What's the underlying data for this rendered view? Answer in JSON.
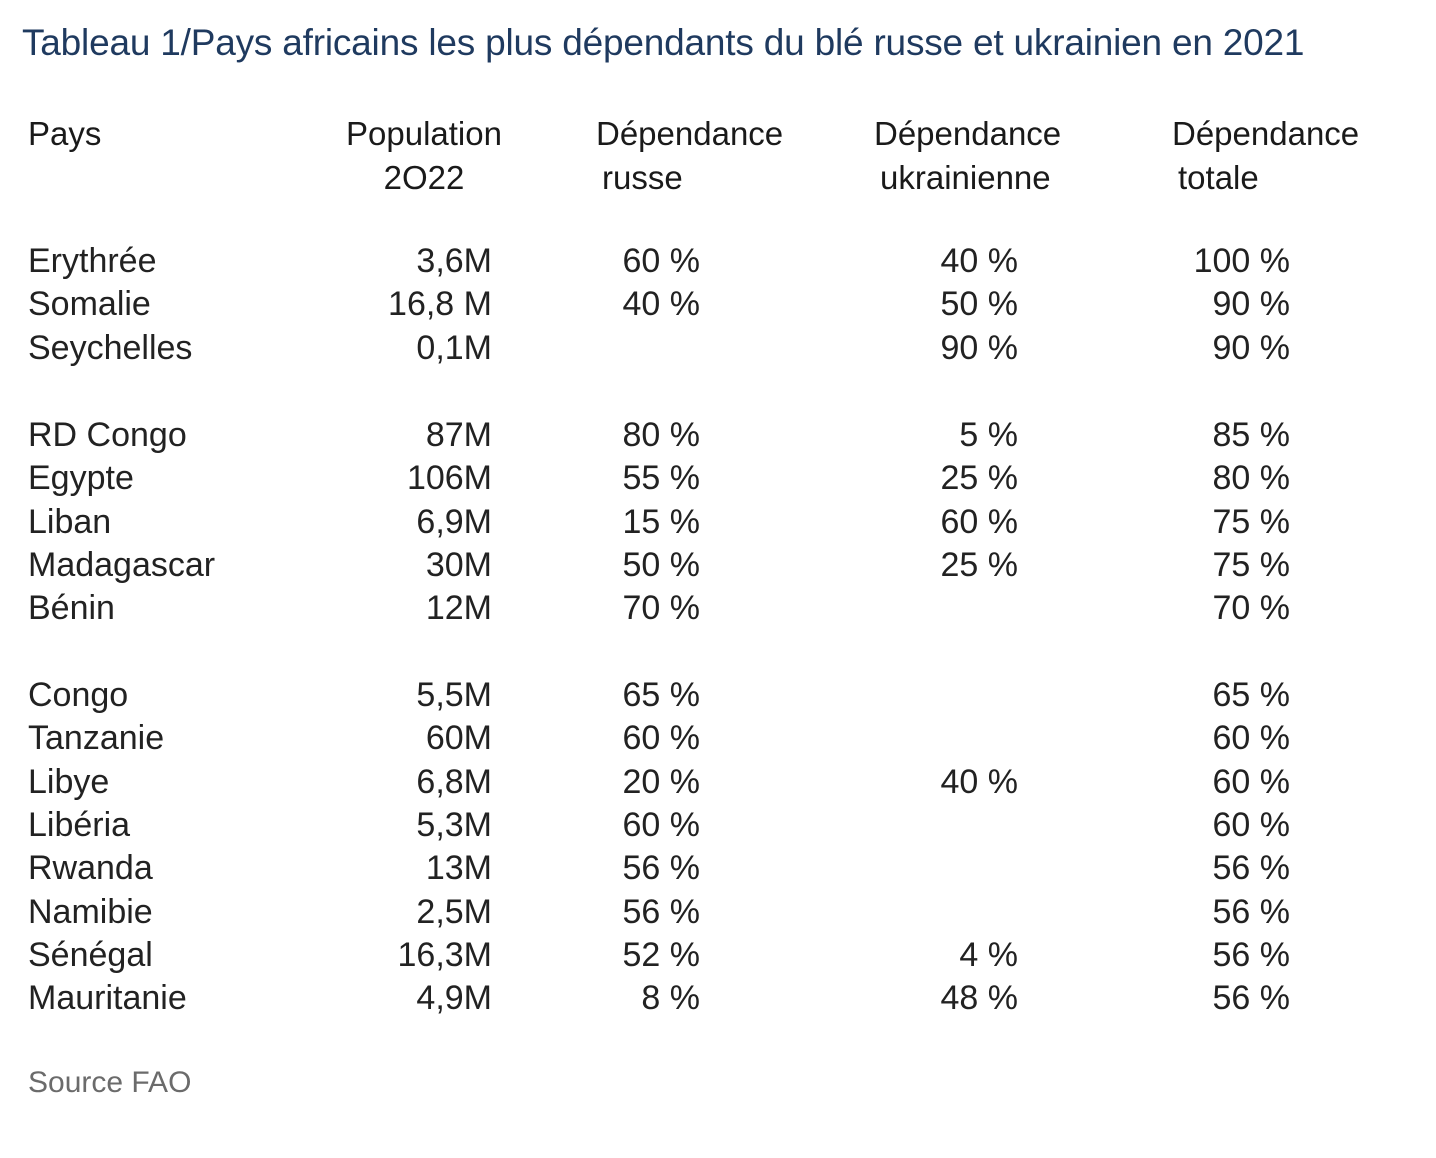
{
  "title": "Tableau 1/Pays africains les plus dépendants du blé russe et ukrainien en 2021",
  "source": "Source FAO",
  "chart_data": {
    "type": "table",
    "title": "Tableau 1/Pays africains les plus dépendants du blé russe et ukrainien en 2021",
    "columns": [
      {
        "key": "pays",
        "lines": [
          "Pays"
        ]
      },
      {
        "key": "population",
        "lines": [
          "Population",
          "2O22"
        ]
      },
      {
        "key": "russe",
        "lines": [
          "Dépendance",
          "russe"
        ]
      },
      {
        "key": "ukrainienne",
        "lines": [
          "Dépendance",
          "ukrainienne"
        ]
      },
      {
        "key": "totale",
        "lines": [
          "Dépendance",
          "totale"
        ]
      }
    ],
    "groups": [
      [
        {
          "pays": "Erythrée",
          "population": "3,6M",
          "russe": "60 %",
          "ukrainienne": "40 %",
          "totale": "100 %"
        },
        {
          "pays": "Somalie",
          "population": "16,8 M",
          "russe": "40 %",
          "ukrainienne": "50 %",
          "totale": "90 %"
        },
        {
          "pays": "Seychelles",
          "population": "0,1M",
          "russe": "",
          "ukrainienne": "90 %",
          "totale": "90 %"
        }
      ],
      [
        {
          "pays": "RD Congo",
          "population": "87M",
          "russe": "80 %",
          "ukrainienne": "5 %",
          "totale": "85 %"
        },
        {
          "pays": "Egypte",
          "population": "106M",
          "russe": "55 %",
          "ukrainienne": "25 %",
          "totale": "80 %"
        },
        {
          "pays": "Liban",
          "population": "6,9M",
          "russe": "15 %",
          "ukrainienne": "60 %",
          "totale": "75 %"
        },
        {
          "pays": "Madagascar",
          "population": "30M",
          "russe": "50 %",
          "ukrainienne": "25 %",
          "totale": "75 %"
        },
        {
          "pays": "Bénin",
          "population": "12M",
          "russe": "70 %",
          "ukrainienne": "",
          "totale": "70 %"
        }
      ],
      [
        {
          "pays": "Congo",
          "population": "5,5M",
          "russe": "65 %",
          "ukrainienne": "",
          "totale": "65 %"
        },
        {
          "pays": "Tanzanie",
          "population": "60M",
          "russe": "60 %",
          "ukrainienne": "",
          "totale": "60 %"
        },
        {
          "pays": "Libye",
          "population": "6,8M",
          "russe": "20 %",
          "ukrainienne": "40 %",
          "totale": "60 %"
        },
        {
          "pays": "Libéria",
          "population": "5,3M",
          "russe": "60 %",
          "ukrainienne": "",
          "totale": "60 %"
        },
        {
          "pays": "Rwanda",
          "population": "13M",
          "russe": "56 %",
          "ukrainienne": "",
          "totale": "56 %"
        },
        {
          "pays": "Namibie",
          "population": "2,5M",
          "russe": "56 %",
          "ukrainienne": "",
          "totale": "56 %"
        },
        {
          "pays": "Sénégal",
          "population": "16,3M",
          "russe": "52 %",
          "ukrainienne": "4 %",
          "totale": "56 %"
        },
        {
          "pays": "Mauritanie",
          "population": "4,9M",
          "russe": "8 %",
          "ukrainienne": "48 %",
          "totale": "56 %"
        }
      ]
    ]
  }
}
